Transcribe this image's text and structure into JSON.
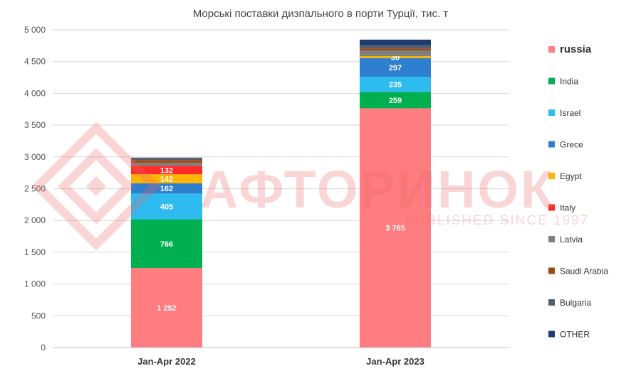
{
  "chart_data": {
    "type": "bar",
    "stacked": true,
    "title": "Морські поставки дизпального в порти Турції, тис. т",
    "categories": [
      "Jan-Apr 2022",
      "Jan-Apr 2023"
    ],
    "ylim": [
      0,
      5000
    ],
    "yticks": [
      0,
      500,
      1000,
      1500,
      2000,
      2500,
      3000,
      3500,
      4000,
      4500,
      5000
    ],
    "ytick_labels": [
      "0",
      "500",
      "1 000",
      "1 500",
      "2 000",
      "2 500",
      "3 000",
      "3 500",
      "4 000",
      "4 500",
      "5 000"
    ],
    "grid": true,
    "legend_position": "right",
    "series": [
      {
        "name": "russia",
        "color": "#ff7c80",
        "values": [
          1252,
          3765
        ],
        "labels": [
          "1 252",
          "3 765"
        ]
      },
      {
        "name": "India",
        "color": "#00b050",
        "values": [
          766,
          259
        ],
        "labels": [
          "766",
          "259"
        ]
      },
      {
        "name": "Israel",
        "color": "#2dbbf0",
        "values": [
          405,
          235
        ],
        "labels": [
          "405",
          "235"
        ]
      },
      {
        "name": "Grece",
        "color": "#2e7fd0",
        "values": [
          162,
          297
        ],
        "labels": [
          "162",
          "297"
        ]
      },
      {
        "name": "Egypt",
        "color": "#ffb400",
        "values": [
          142,
          30
        ],
        "labels": [
          "142",
          "30"
        ]
      },
      {
        "name": "Italy",
        "color": "#ff2a2a",
        "values": [
          132,
          0
        ],
        "labels": [
          "132",
          ""
        ]
      },
      {
        "name": "Latvia",
        "color": "#7f7f7f",
        "values": [
          50,
          90
        ],
        "labels": [
          "",
          ""
        ]
      },
      {
        "name": "Saudi Arabia",
        "color": "#9c4a12",
        "values": [
          40,
          30
        ],
        "labels": [
          "",
          ""
        ]
      },
      {
        "name": "Bulgaria",
        "color": "#555f6b",
        "values": [
          40,
          50
        ],
        "labels": [
          "",
          ""
        ]
      },
      {
        "name": "OTHER",
        "color": "#1f3a6e",
        "values": [
          0,
          90
        ],
        "labels": [
          "",
          ""
        ]
      }
    ]
  },
  "watermark": {
    "logo_text": "АФТОРИНОК",
    "tagline": "PUBLISHED SINCE 1997",
    "color": "#e86a6a"
  }
}
